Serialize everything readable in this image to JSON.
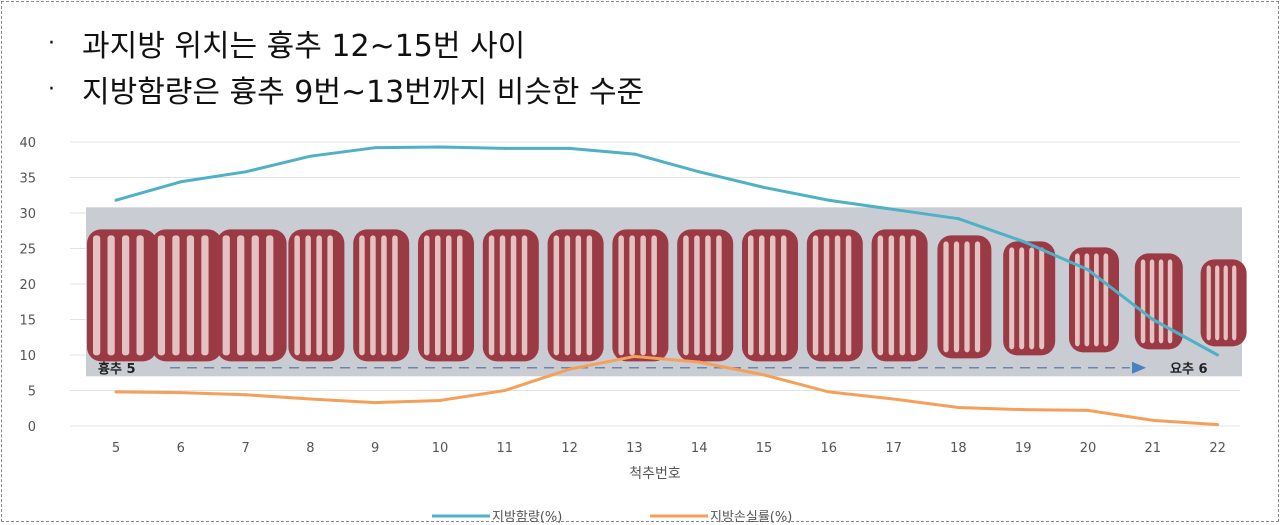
{
  "bullets": [
    {
      "marker": "·",
      "text": "과지방 위치는 흉추 12~15번 사이"
    },
    {
      "marker": "·",
      "text": "지방함량은 흉추 9번~13번까지 비슷한 수준"
    }
  ],
  "chart_data": {
    "type": "line",
    "xlabel": "척추번호",
    "ylabel": "",
    "categories": [
      "5",
      "6",
      "7",
      "8",
      "9",
      "10",
      "11",
      "12",
      "13",
      "14",
      "15",
      "16",
      "17",
      "18",
      "19",
      "20",
      "21",
      "22"
    ],
    "ylim": [
      0,
      40
    ],
    "yticks": [
      0,
      5,
      10,
      15,
      20,
      25,
      30,
      35,
      40
    ],
    "grid": true,
    "legend_position": "bottom",
    "series": [
      {
        "name": "지방함량(%)",
        "color": "#4fb0c6",
        "values": [
          31.8,
          34.4,
          35.8,
          38.0,
          39.2,
          39.3,
          39.1,
          39.1,
          38.3,
          35.8,
          33.6,
          31.8,
          30.5,
          29.2,
          26.0,
          22.0,
          15.0,
          10.0
        ]
      },
      {
        "name": "지방손실률(%)",
        "color": "#f5a05a",
        "values": [
          4.8,
          4.7,
          4.4,
          3.8,
          3.3,
          3.6,
          5.0,
          8.0,
          9.8,
          9.0,
          7.2,
          4.8,
          3.8,
          2.6,
          2.3,
          2.2,
          0.8,
          0.2
        ]
      }
    ],
    "photo_labels": {
      "left": "흉추 5",
      "right": "요추 6"
    },
    "photo_colors": {
      "band": "#c9cdd3",
      "meat": "#9b3a45",
      "fat": "#f0dcd8"
    }
  }
}
